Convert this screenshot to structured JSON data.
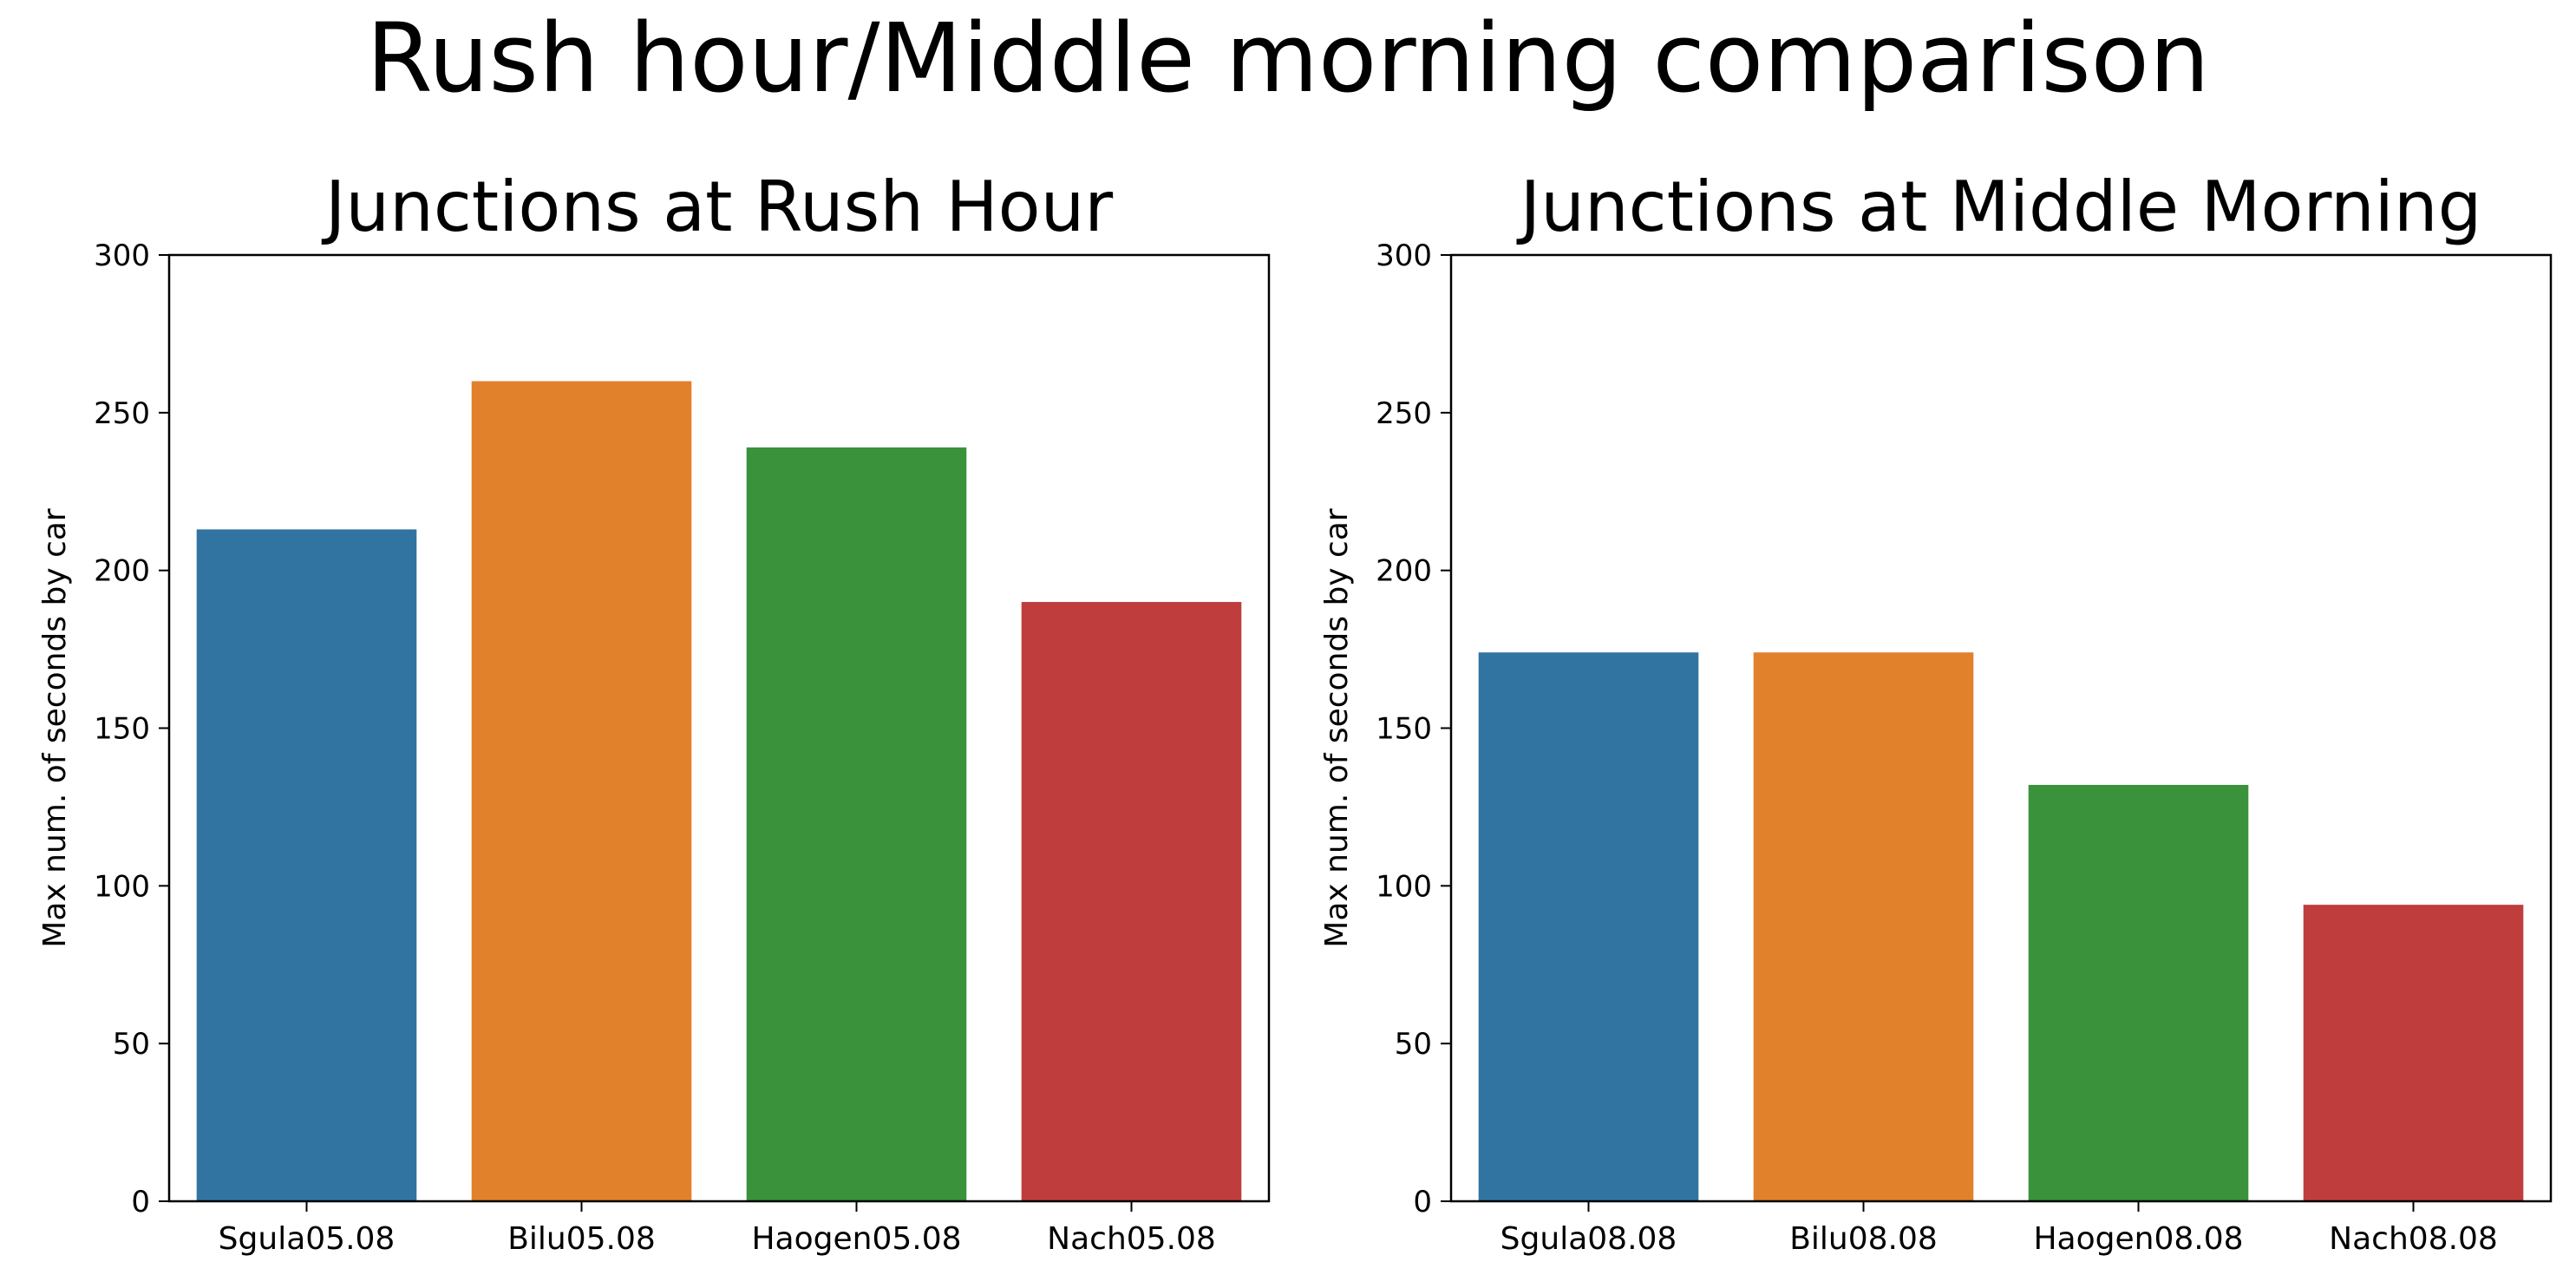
{
  "figure": {
    "suptitle": "Rush hour/Middle morning comparison"
  },
  "chart_data": [
    {
      "type": "bar",
      "title": "Junctions at Rush Hour",
      "xlabel": "",
      "ylabel": "Max num. of seconds by car",
      "categories": [
        "Sgula05.08",
        "Bilu05.08",
        "Haogen05.08",
        "Nach05.08"
      ],
      "values": [
        213,
        260,
        239,
        190
      ],
      "colors": [
        "#3274a1",
        "#e1812c",
        "#3a923a",
        "#c03d3e"
      ],
      "ylim": [
        0,
        300
      ],
      "yticks": [
        0,
        50,
        100,
        150,
        200,
        250,
        300
      ],
      "grid": false
    },
    {
      "type": "bar",
      "title": "Junctions at Middle Morning",
      "xlabel": "",
      "ylabel": "Max num. of seconds by car",
      "categories": [
        "Sgula08.08",
        "Bilu08.08",
        "Haogen08.08",
        "Nach08.08"
      ],
      "values": [
        174,
        174,
        132,
        94
      ],
      "colors": [
        "#3274a1",
        "#e1812c",
        "#3a923a",
        "#c03d3e"
      ],
      "ylim": [
        0,
        300
      ],
      "yticks": [
        0,
        50,
        100,
        150,
        200,
        250,
        300
      ],
      "grid": false
    }
  ]
}
